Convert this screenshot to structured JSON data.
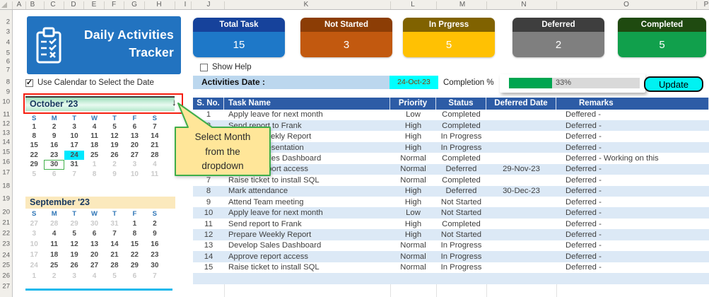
{
  "app": {
    "title_line1": "Daily Activities",
    "title_line2": "Tracker"
  },
  "spreadsheet": {
    "column_letters": [
      "A",
      "B",
      "C",
      "D",
      "E",
      "F",
      "G",
      "H",
      "I",
      "J",
      "K",
      "L",
      "M",
      "N",
      "O",
      "P"
    ],
    "row_numbers": [
      "2",
      "3",
      "4",
      "5",
      "6",
      "7",
      "8",
      "9",
      "10",
      "11",
      "12",
      "13",
      "14",
      "15",
      "16",
      "17",
      "18",
      "19",
      "20",
      "21",
      "22",
      "23",
      "24",
      "25",
      "26",
      "27"
    ]
  },
  "kpis": [
    {
      "label": "Total Task",
      "value": "15",
      "header_color": "#16429B",
      "body_color": "#1E78C8"
    },
    {
      "label": "Not Started",
      "value": "3",
      "header_color": "#8C3D05",
      "body_color": "#C2590F"
    },
    {
      "label": "In Prgress",
      "value": "5",
      "header_color": "#806200",
      "body_color": "#FFC103"
    },
    {
      "label": "Deferred",
      "value": "2",
      "header_color": "#3E3E3E",
      "body_color": "#7F7F7F"
    },
    {
      "label": "Completed",
      "value": "5",
      "header_color": "#1F4A10",
      "body_color": "#11A04C"
    }
  ],
  "checkboxes": {
    "show_help": {
      "label": "Show Help",
      "checked": false
    },
    "use_calendar": {
      "label": "Use Calendar to Select the Date",
      "checked": true
    }
  },
  "activities": {
    "date_label": "Activities Date :",
    "date_value": "24-Oct-23",
    "completion_label": "Completion %",
    "completion_percent": 33,
    "completion_text": "33%",
    "update_label": "Update"
  },
  "tooltip": {
    "lines": [
      "Select Month",
      "from the",
      "dropdown"
    ]
  },
  "calendars": [
    {
      "title": "October '23",
      "day_headers": [
        "S",
        "M",
        "T",
        "W",
        "T",
        "F",
        "S"
      ],
      "weeks": [
        [
          {
            "t": "1"
          },
          {
            "t": "2"
          },
          {
            "t": "3"
          },
          {
            "t": "4"
          },
          {
            "t": "5"
          },
          {
            "t": "6"
          },
          {
            "t": "7"
          }
        ],
        [
          {
            "t": "8"
          },
          {
            "t": "9"
          },
          {
            "t": "10"
          },
          {
            "t": "11"
          },
          {
            "t": "12"
          },
          {
            "t": "13"
          },
          {
            "t": "14"
          }
        ],
        [
          {
            "t": "15"
          },
          {
            "t": "16"
          },
          {
            "t": "17"
          },
          {
            "t": "18"
          },
          {
            "t": "19"
          },
          {
            "t": "20"
          },
          {
            "t": "21"
          }
        ],
        [
          {
            "t": "22"
          },
          {
            "t": "23"
          },
          {
            "t": "24",
            "state": "selected"
          },
          {
            "t": "25"
          },
          {
            "t": "26"
          },
          {
            "t": "27"
          },
          {
            "t": "28"
          }
        ],
        [
          {
            "t": "29"
          },
          {
            "t": "30",
            "state": "outlined"
          },
          {
            "t": "31"
          },
          {
            "t": "1",
            "state": "muted"
          },
          {
            "t": "2",
            "state": "muted"
          },
          {
            "t": "3",
            "state": "muted"
          },
          {
            "t": "4",
            "state": "muted"
          }
        ],
        [
          {
            "t": "5",
            "state": "muted"
          },
          {
            "t": "6",
            "state": "muted"
          },
          {
            "t": "7",
            "state": "muted"
          },
          {
            "t": "8",
            "state": "muted"
          },
          {
            "t": "9",
            "state": "muted"
          },
          {
            "t": "10",
            "state": "muted"
          },
          {
            "t": "11",
            "state": "muted"
          }
        ]
      ]
    },
    {
      "title": "September '23",
      "day_headers": [
        "S",
        "M",
        "T",
        "W",
        "T",
        "F",
        "S"
      ],
      "weeks": [
        [
          {
            "t": "27",
            "state": "muted"
          },
          {
            "t": "28",
            "state": "muted"
          },
          {
            "t": "29",
            "state": "muted"
          },
          {
            "t": "30",
            "state": "muted"
          },
          {
            "t": "31",
            "state": "muted"
          },
          {
            "t": "1"
          },
          {
            "t": "2"
          }
        ],
        [
          {
            "t": "3",
            "state": "muted"
          },
          {
            "t": "4"
          },
          {
            "t": "5"
          },
          {
            "t": "6"
          },
          {
            "t": "7"
          },
          {
            "t": "8"
          },
          {
            "t": "9"
          }
        ],
        [
          {
            "t": "10",
            "state": "muted"
          },
          {
            "t": "11"
          },
          {
            "t": "12"
          },
          {
            "t": "13"
          },
          {
            "t": "14"
          },
          {
            "t": "15"
          },
          {
            "t": "16"
          }
        ],
        [
          {
            "t": "17",
            "state": "muted"
          },
          {
            "t": "18"
          },
          {
            "t": "19"
          },
          {
            "t": "20"
          },
          {
            "t": "21"
          },
          {
            "t": "22"
          },
          {
            "t": "23"
          }
        ],
        [
          {
            "t": "24",
            "state": "muted"
          },
          {
            "t": "25"
          },
          {
            "t": "26"
          },
          {
            "t": "27"
          },
          {
            "t": "28"
          },
          {
            "t": "29"
          },
          {
            "t": "30"
          }
        ],
        [
          {
            "t": "1",
            "state": "muted"
          },
          {
            "t": "2",
            "state": "muted"
          },
          {
            "t": "3",
            "state": "muted"
          },
          {
            "t": "4",
            "state": "muted"
          },
          {
            "t": "5",
            "state": "muted"
          },
          {
            "t": "6",
            "state": "muted"
          },
          {
            "t": "7",
            "state": "muted"
          }
        ]
      ]
    }
  ],
  "table": {
    "headers": [
      "S. No.",
      "Task Name",
      "Priority",
      "Status",
      "Deferred Date",
      "Remarks"
    ],
    "rows": [
      {
        "no": "1",
        "task": "Apply leave for next month",
        "priority": "Low",
        "status": "Completed",
        "deferred_date": "",
        "remarks": "Deffered -"
      },
      {
        "no": "2",
        "task": "Send report to Frank",
        "priority": "High",
        "status": "Completed",
        "deferred_date": "",
        "remarks": "Deferred -"
      },
      {
        "no": "3",
        "task": "Prepare Weekly Report",
        "priority": "High",
        "status": "In Progress",
        "deferred_date": "",
        "remarks": "Deferred -"
      },
      {
        "no": "4",
        "task": "Prepare Presentation",
        "priority": "High",
        "status": "In Progress",
        "deferred_date": "",
        "remarks": "Deferred -"
      },
      {
        "no": "5",
        "task": "Develop Sales Dashboard",
        "priority": "Normal",
        "status": "Completed",
        "deferred_date": "",
        "remarks": "Deferred - Working on this"
      },
      {
        "no": "6",
        "task": "Approve report access",
        "priority": "Normal",
        "status": "Deferred",
        "deferred_date": "29-Nov-23",
        "remarks": "Deferred -"
      },
      {
        "no": "7",
        "task": "Raise ticket to install SQL",
        "priority": "Normal",
        "status": "Completed",
        "deferred_date": "",
        "remarks": "Deferred -"
      },
      {
        "no": "8",
        "task": "Mark attendance",
        "priority": "High",
        "status": "Deferred",
        "deferred_date": "30-Dec-23",
        "remarks": "Deferred -"
      },
      {
        "no": "9",
        "task": "Attend Team meeting",
        "priority": "High",
        "status": "Not Started",
        "deferred_date": "",
        "remarks": "Deferred -"
      },
      {
        "no": "10",
        "task": "Apply leave for next month",
        "priority": "Low",
        "status": "Not Started",
        "deferred_date": "",
        "remarks": "Deferred -"
      },
      {
        "no": "11",
        "task": "Send report to Frank",
        "priority": "High",
        "status": "Completed",
        "deferred_date": "",
        "remarks": "Deferred -"
      },
      {
        "no": "12",
        "task": "Prepare Weekly Report",
        "priority": "High",
        "status": "Not Started",
        "deferred_date": "",
        "remarks": "Deferred -"
      },
      {
        "no": "13",
        "task": "Develop Sales Dashboard",
        "priority": "Normal",
        "status": "In Progress",
        "deferred_date": "",
        "remarks": "Deferred -"
      },
      {
        "no": "14",
        "task": "Approve report access",
        "priority": "Normal",
        "status": "In Progress",
        "deferred_date": "",
        "remarks": "Deferred -"
      },
      {
        "no": "15",
        "task": "Raise ticket to install SQL",
        "priority": "Normal",
        "status": "In Progress",
        "deferred_date": "",
        "remarks": "Deferred -"
      }
    ]
  },
  "colors": {
    "accent_blue": "#2273C0",
    "table_header": "#2D5CA6",
    "row_stripe": "#DCE9F6",
    "date_cell": "#00FFFF",
    "progress_green": "#00A550",
    "update_button": "#00F2F2",
    "selected_day": "#00E9FF",
    "tooltip_fill": "#FFE699",
    "tooltip_border": "#3FAE49"
  }
}
